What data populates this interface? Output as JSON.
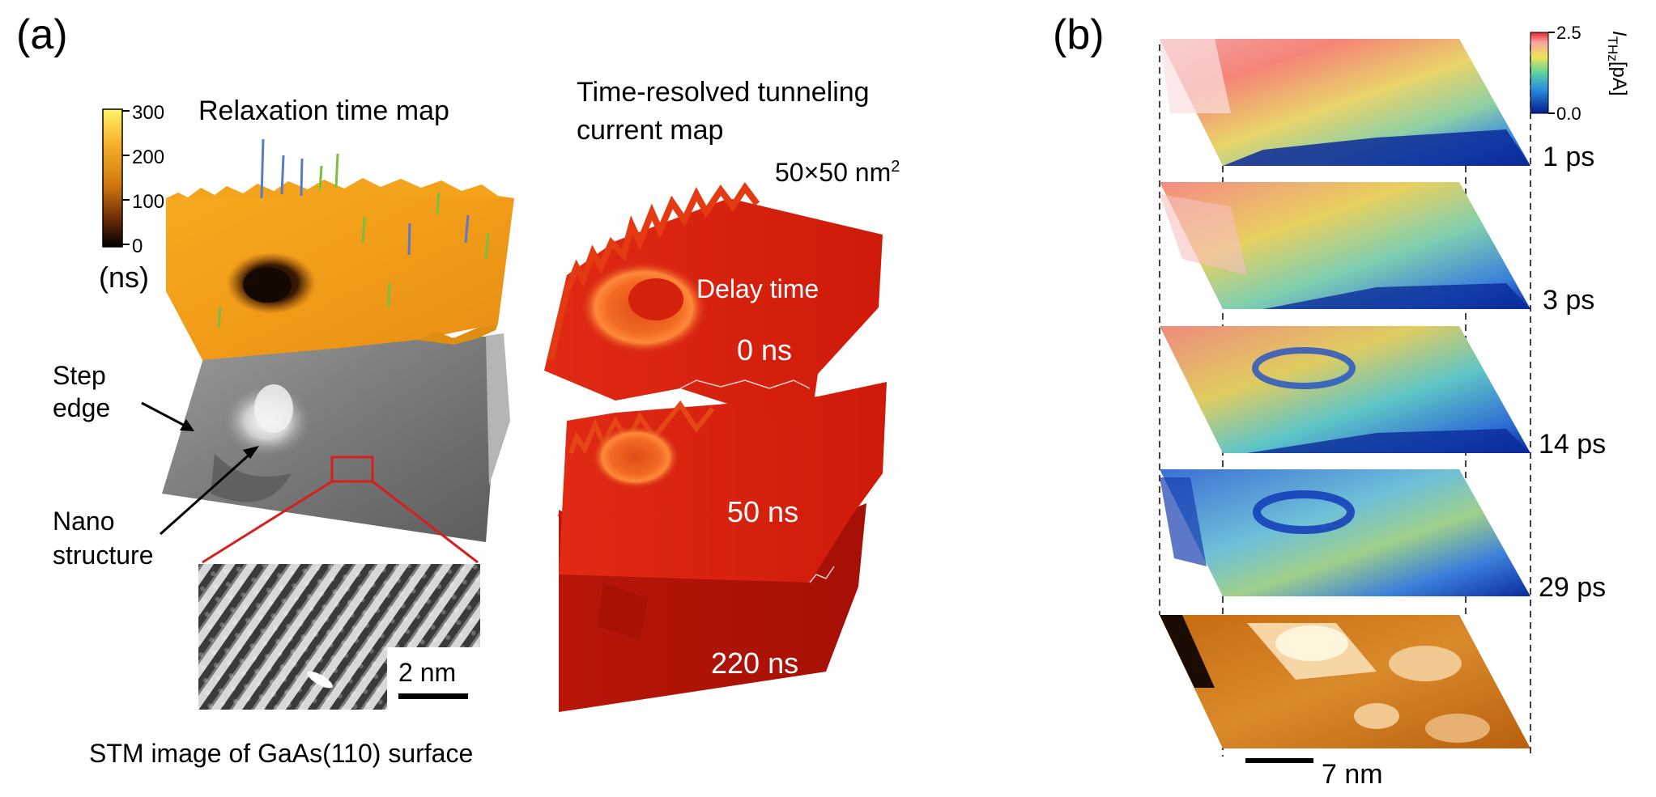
{
  "panel_a": {
    "label": "(a)",
    "colorbar": {
      "ticks": [
        "300",
        "200",
        "100",
        "0"
      ],
      "unit": "(ns)"
    },
    "relaxation_title": "Relaxation time map",
    "annotations": {
      "step_line1": "Step",
      "step_line2": "edge",
      "nano_line1": "Nano",
      "nano_line2": "structure"
    },
    "stm_scale": "2 nm",
    "stm_caption": "STM image of GaAs(110) surface",
    "tr_title_line1": "Time-resolved tunneling",
    "tr_title_line2": "current map",
    "area_base": "50×50 nm",
    "area_sup": "2",
    "delay_label": "Delay time",
    "delays": [
      "0 ns",
      "50 ns",
      "220 ns"
    ]
  },
  "panel_b": {
    "label": "(b)",
    "colorbar": {
      "max": "2.5",
      "min": "0.0",
      "unit_sub": "THz",
      "unit_rest": "[pA]",
      "unit_i": "I"
    },
    "times": [
      "1 ps",
      "3 ps",
      "14 ps",
      "29 ps"
    ],
    "scale": "7 nm"
  },
  "colors": {
    "red_frame": "#d62020",
    "map_red": "#d01a0c",
    "orange": "#f3a01b"
  }
}
